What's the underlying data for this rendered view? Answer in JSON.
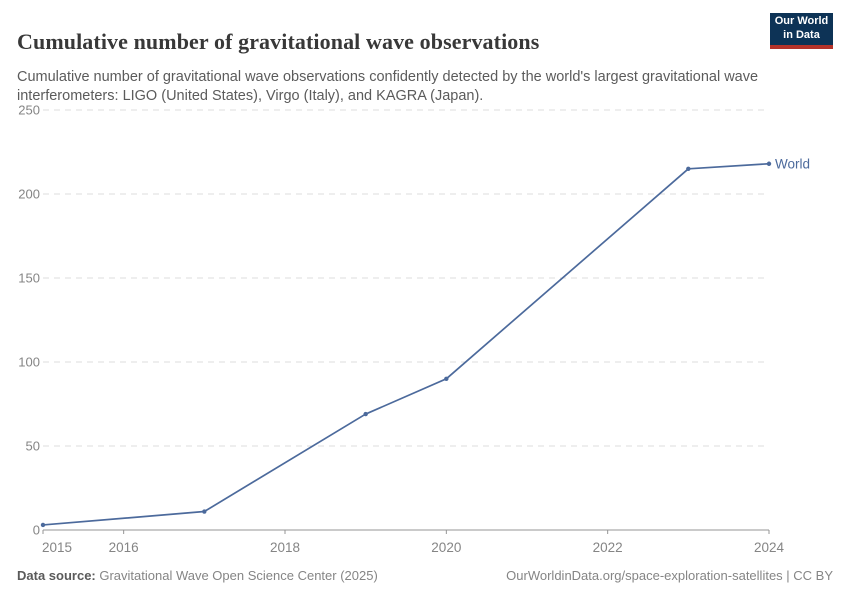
{
  "header": {
    "title": "Cumulative number of gravitational wave observations",
    "subtitle": "Cumulative number of gravitational wave observations confidently detected by the world's largest gravitational wave interferometers: LIGO (United States), Virgo (Italy), and KAGRA (Japan)."
  },
  "logo": {
    "line1": "Our World",
    "line2": "in Data",
    "bg_color": "#0d3356",
    "bar_color": "#b5332a"
  },
  "footer": {
    "datasource_label": "Data source:",
    "datasource_value": " Gravitational Wave Open Science Center (2025)",
    "right_text": "OurWorldinData.org/space-exploration-satellites | CC BY"
  },
  "chart_data": {
    "type": "line",
    "title": "Cumulative number of gravitational wave observations",
    "xlabel": "",
    "ylabel": "",
    "xlim": [
      2015,
      2024
    ],
    "ylim": [
      0,
      250
    ],
    "x_ticks": [
      "2015",
      "2016",
      "2018",
      "2020",
      "2022",
      "2024"
    ],
    "x_tick_values": [
      2015,
      2016,
      2018,
      2020,
      2022,
      2024
    ],
    "y_ticks": [
      "0",
      "50",
      "100",
      "150",
      "200",
      "250"
    ],
    "y_tick_values": [
      0,
      50,
      100,
      150,
      200,
      250
    ],
    "grid": "horizontal dashed",
    "legend_position": "end-of-line label",
    "series": [
      {
        "name": "World",
        "color": "#4c6a9c",
        "points": [
          [
            2015,
            3
          ],
          [
            2017,
            11
          ],
          [
            2019,
            69
          ],
          [
            2020,
            90
          ],
          [
            2023,
            215
          ],
          [
            2024,
            218
          ]
        ]
      }
    ],
    "colors": {
      "gridline": "#dedede",
      "axis_line": "#949494",
      "tick_label": "#858585"
    }
  }
}
